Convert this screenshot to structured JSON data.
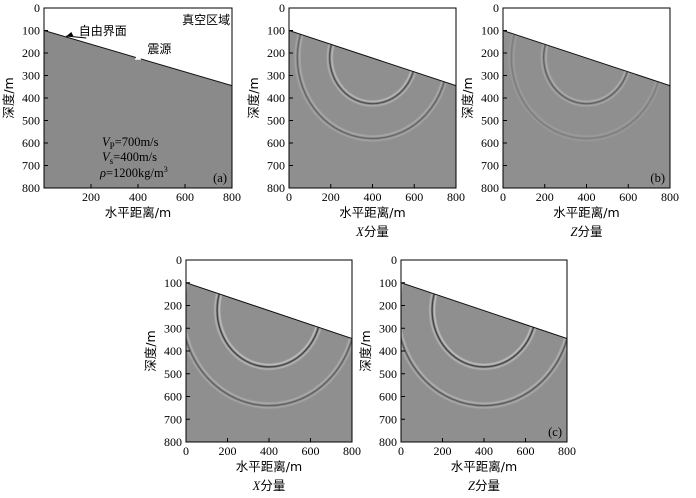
{
  "chart_data": [
    {
      "type": "heatmap",
      "panel_label": "(a)",
      "xlabel": "水平距离/m",
      "ylabel": "深度/m",
      "xlim": [
        0,
        800
      ],
      "ylim": [
        800,
        0
      ],
      "xticks": [
        "200",
        "400",
        "600",
        "800"
      ],
      "yticks": [
        "0",
        "100",
        "200",
        "300",
        "400",
        "500",
        "600",
        "700",
        "800"
      ],
      "surface": {
        "x": [
          0,
          800
        ],
        "depth": [
          100,
          345
        ]
      },
      "source": {
        "x": 400,
        "depth": 220
      },
      "annotations": {
        "free_surface": "自由界面",
        "source": "震源",
        "vacuum": "真空区域"
      },
      "params": {
        "vp": "=700m/s",
        "vs": "=400m/s",
        "rho": "=1200kg/m",
        "rho_exp": "3"
      }
    },
    {
      "type": "heatmap",
      "panel_label": "",
      "component": "X分量",
      "xlabel": "水平距离/m",
      "ylabel": "深度/m",
      "xlim": [
        0,
        800
      ],
      "ylim": [
        800,
        0
      ],
      "xticks": [
        "0",
        "200",
        "400",
        "600",
        "800"
      ],
      "yticks": [
        "0",
        "100",
        "200",
        "300",
        "400",
        "500",
        "600",
        "700",
        "800"
      ],
      "surface": {
        "x": [
          0,
          800
        ],
        "depth": [
          100,
          345
        ]
      },
      "source": {
        "x": 400,
        "depth": 220
      },
      "wavefronts": [
        {
          "type": "P",
          "radius": 360,
          "strength": 0.55
        },
        {
          "type": "S",
          "radius": 205,
          "strength": 0.85
        }
      ]
    },
    {
      "type": "heatmap",
      "panel_label": "(b)",
      "component": "Z分量",
      "xlabel": "水平距离/m",
      "ylabel": "深度/m",
      "xlim": [
        0,
        800
      ],
      "ylim": [
        800,
        0
      ],
      "xticks": [
        "0",
        "200",
        "400",
        "600",
        "800"
      ],
      "yticks": [
        "0",
        "100",
        "200",
        "300",
        "400",
        "500",
        "600",
        "700",
        "800"
      ],
      "surface": {
        "x": [
          0,
          800
        ],
        "depth": [
          100,
          345
        ]
      },
      "source": {
        "x": 400,
        "depth": 220
      },
      "wavefronts": [
        {
          "type": "P",
          "radius": 360,
          "strength": 0.25
        },
        {
          "type": "S",
          "radius": 205,
          "strength": 0.6
        }
      ]
    },
    {
      "type": "heatmap",
      "panel_label": "",
      "component": "X分量",
      "xlabel": "水平距离/m",
      "ylabel": "深度/m",
      "xlim": [
        0,
        800
      ],
      "ylim": [
        800,
        0
      ],
      "xticks": [
        "0",
        "200",
        "400",
        "600",
        "800"
      ],
      "yticks": [
        "0",
        "100",
        "200",
        "300",
        "400",
        "500",
        "600",
        "700",
        "800"
      ],
      "surface": {
        "x": [
          0,
          800
        ],
        "depth": [
          100,
          345
        ]
      },
      "source": {
        "x": 400,
        "depth": 220
      },
      "wavefronts": [
        {
          "type": "P",
          "radius": 420,
          "strength": 0.6
        },
        {
          "type": "S",
          "radius": 250,
          "strength": 1.0
        }
      ]
    },
    {
      "type": "heatmap",
      "panel_label": "(c)",
      "component": "Z分量",
      "xlabel": "水平距离/m",
      "ylabel": "深度/m",
      "xlim": [
        0,
        800
      ],
      "ylim": [
        800,
        0
      ],
      "xticks": [
        "0",
        "200",
        "400",
        "600",
        "800"
      ],
      "yticks": [
        "0",
        "100",
        "200",
        "300",
        "400",
        "500",
        "600",
        "700",
        "800"
      ],
      "surface": {
        "x": [
          0,
          800
        ],
        "depth": [
          100,
          345
        ]
      },
      "source": {
        "x": 400,
        "depth": 220
      },
      "wavefronts": [
        {
          "type": "P",
          "radius": 420,
          "strength": 0.7
        },
        {
          "type": "S",
          "radius": 250,
          "strength": 1.0
        }
      ]
    }
  ]
}
